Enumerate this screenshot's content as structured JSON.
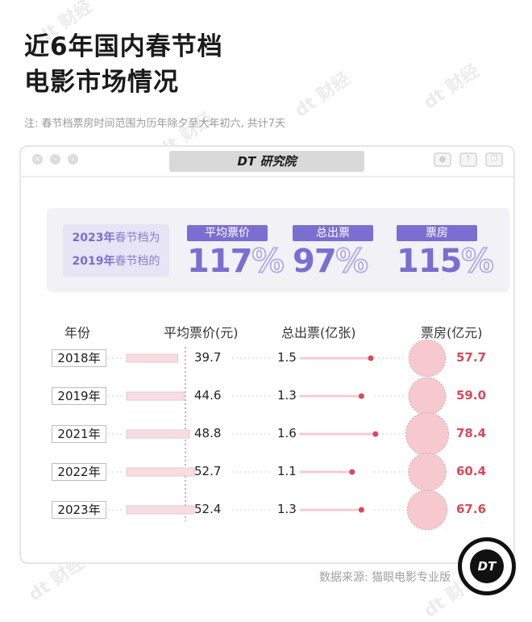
{
  "title_line1": "近6年国内春节档",
  "title_line2": "电影市场情况",
  "note": "注: 春节档票房时间范围为历年除夕至大年初六, 共计7天",
  "brand": "DT 研究院",
  "watermark": "dt 财经",
  "summary": {
    "compare_line1_year": "2023年",
    "compare_line1_rest": "春节档为",
    "compare_line2_year": "2019年",
    "compare_line2_rest": "春节档的",
    "metrics": [
      {
        "label": "平均票价",
        "value": "117",
        "unit": "%"
      },
      {
        "label": "总出票",
        "value": "97",
        "unit": "%"
      },
      {
        "label": "票房",
        "value": "115",
        "unit": "%"
      }
    ]
  },
  "colors": {
    "accent": "#7c6ed0",
    "price_bar": "#f6dde2",
    "dot": "#d64a5a",
    "bubble": "#f6c9cf"
  },
  "chart_data": {
    "type": "table",
    "columns": [
      "年份",
      "平均票价(元)",
      "总出票(亿张)",
      "票房(亿元)"
    ],
    "rows": [
      {
        "year": "2018年",
        "price": 39.7,
        "tickets": 1.5,
        "box": 57.7
      },
      {
        "year": "2019年",
        "price": 44.6,
        "tickets": 1.3,
        "box": 59.0
      },
      {
        "year": "2021年",
        "price": 48.8,
        "tickets": 1.6,
        "box": 78.4
      },
      {
        "year": "2022年",
        "price": 52.7,
        "tickets": 1.1,
        "box": 60.4
      },
      {
        "year": "2023年",
        "price": 52.4,
        "tickets": 1.3,
        "box": 67.6
      }
    ],
    "price_display": [
      "39.7",
      "44.6",
      "48.8",
      "52.7",
      "52.4"
    ],
    "tickets_display": [
      "1.5",
      "1.3",
      "1.6",
      "1.1",
      "1.3"
    ],
    "box_display": [
      "57.7",
      "59.0",
      "78.4",
      "60.4",
      "67.6"
    ]
  },
  "source": "数据来源: 猫眼电影专业版",
  "badge": "DT"
}
